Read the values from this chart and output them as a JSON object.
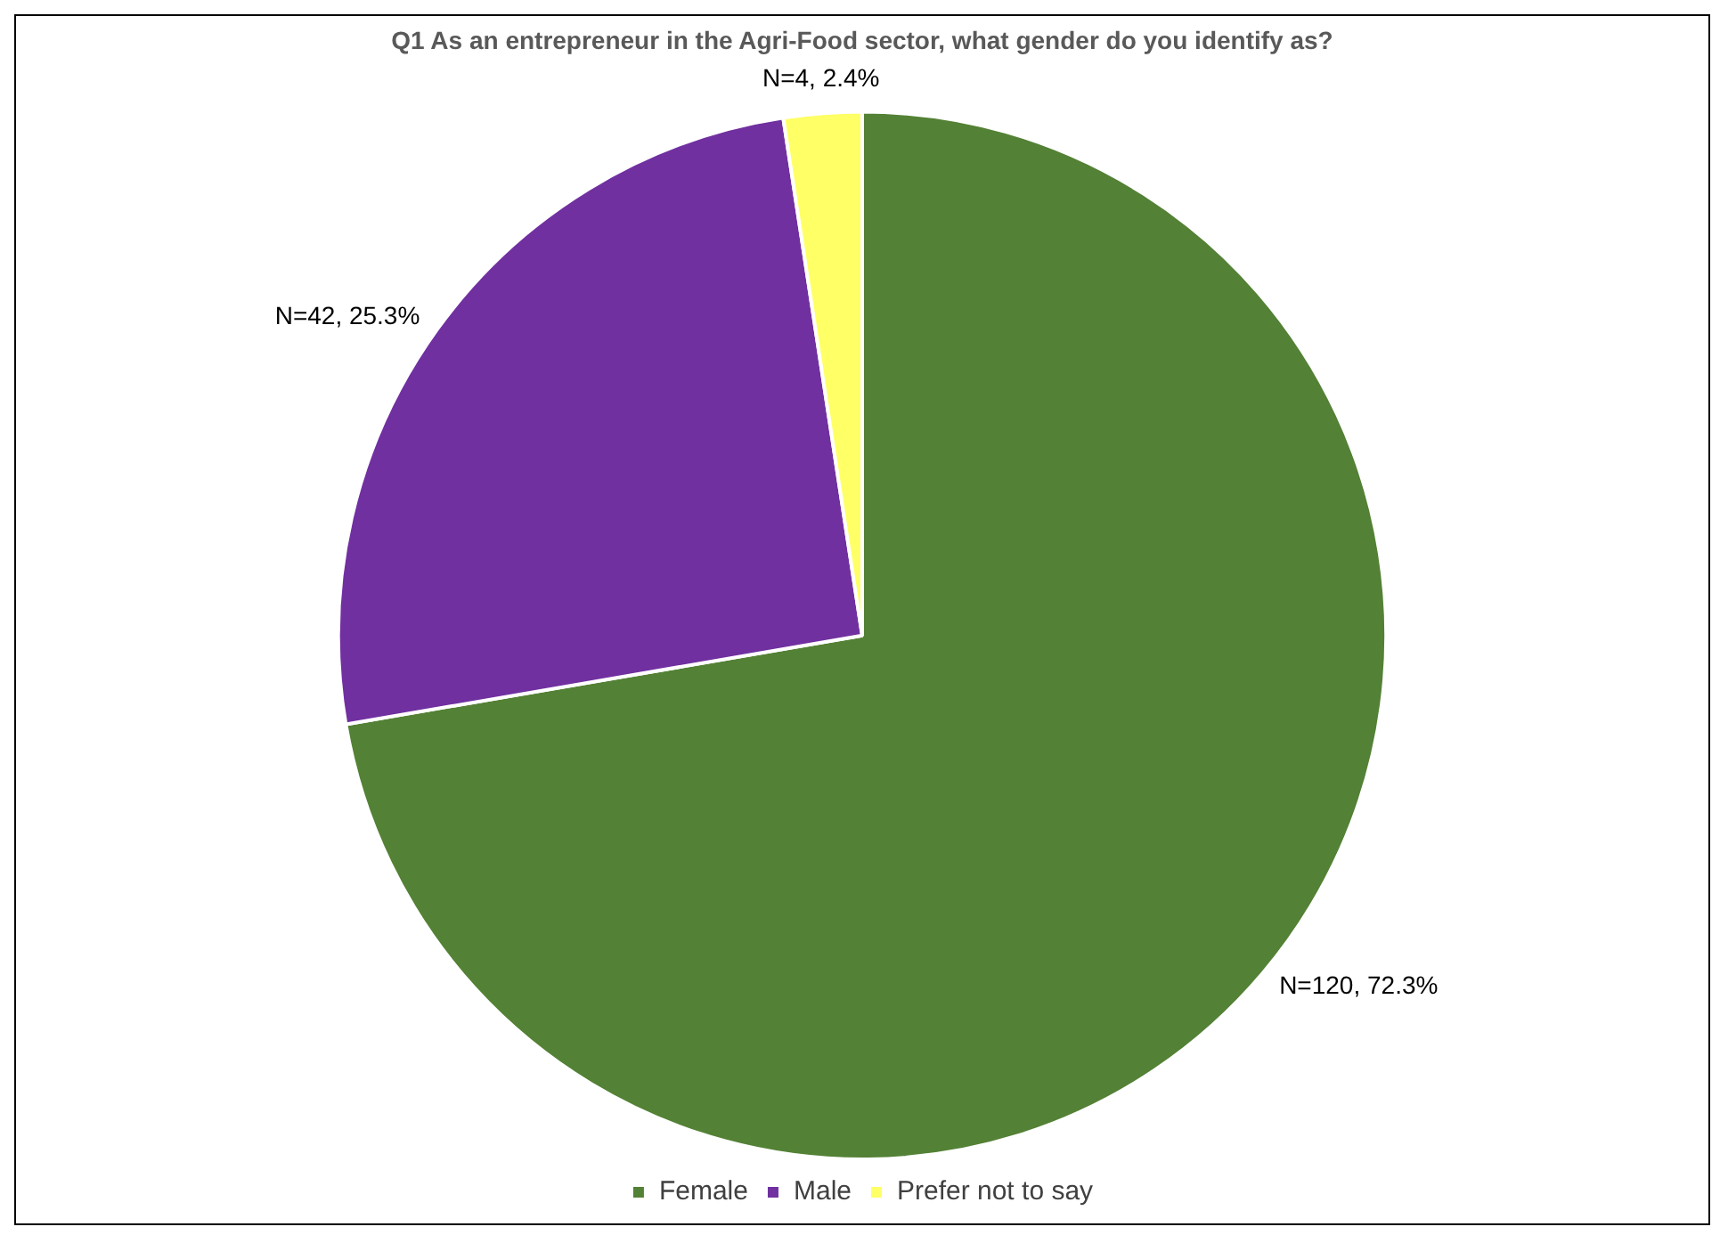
{
  "chart_data": {
    "type": "pie",
    "title": "Q1 As an entrepreneur in the Agri-Food sector, what gender do you identify as?",
    "categories": [
      "Female",
      "Male",
      "Prefer not to say"
    ],
    "values": [
      120,
      42,
      4
    ],
    "colors": [
      "#538135",
      "#7030a0",
      "#ffff66"
    ],
    "value_labels": [
      "N=120, 72.3%",
      "N=42, 25.3%",
      "N=4, 2.4%"
    ],
    "legend": "bottom"
  }
}
